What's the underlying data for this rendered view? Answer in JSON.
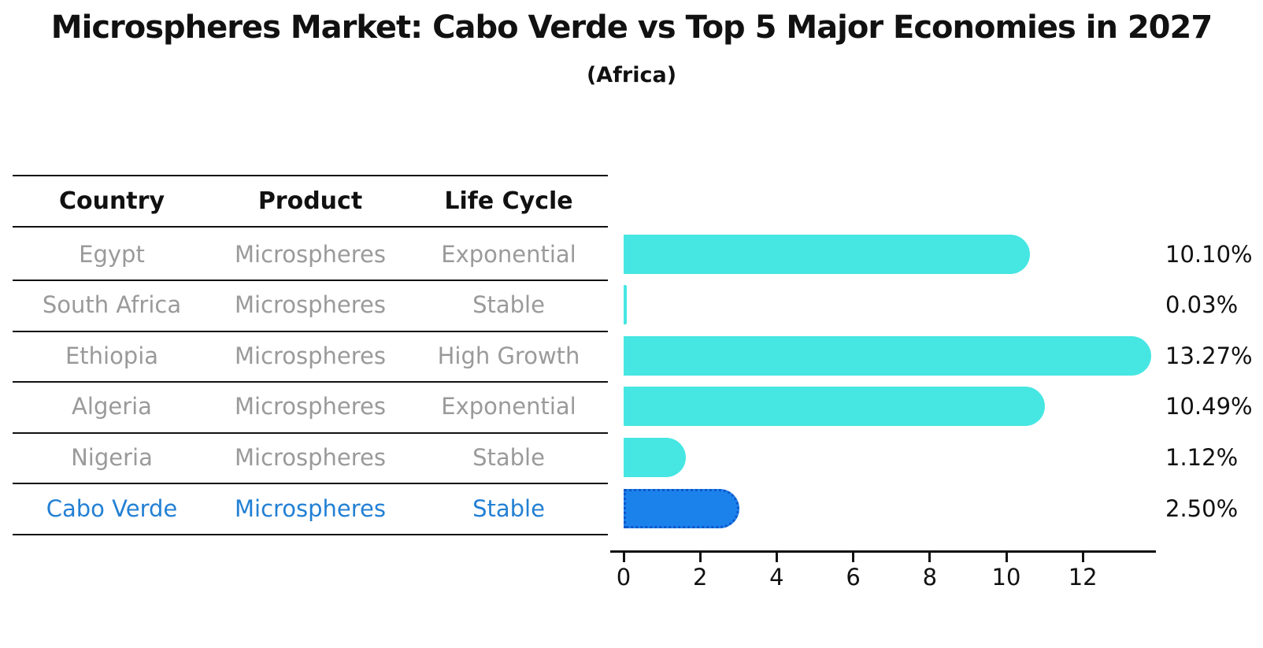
{
  "title": "Microspheres Market: Cabo Verde vs Top 5 Major Economies in 2027",
  "subtitle": "(Africa)",
  "table": {
    "headers": [
      "Country",
      "Product",
      "Life Cycle"
    ],
    "rows": [
      {
        "country": "Egypt",
        "product": "Microspheres",
        "life_cycle": "Exponential",
        "highlight": false
      },
      {
        "country": "South Africa",
        "product": "Microspheres",
        "life_cycle": "Stable",
        "highlight": false
      },
      {
        "country": "Ethiopia",
        "product": "Microspheres",
        "life_cycle": "High Growth",
        "highlight": false
      },
      {
        "country": "Algeria",
        "product": "Microspheres",
        "life_cycle": "Exponential",
        "highlight": false
      },
      {
        "country": "Nigeria",
        "product": "Microspheres",
        "life_cycle": "Stable",
        "highlight": false
      },
      {
        "country": "Cabo Verde",
        "product": "Microspheres",
        "life_cycle": "Stable",
        "highlight": true
      }
    ]
  },
  "chart_data": {
    "type": "bar",
    "orientation": "horizontal",
    "title": "Microspheres Market: Cabo Verde vs Top 5 Major Economies in 2027",
    "subtitle": "(Africa)",
    "categories": [
      "Egypt",
      "South Africa",
      "Ethiopia",
      "Algeria",
      "Nigeria",
      "Cabo Verde"
    ],
    "values": [
      10.1,
      0.03,
      13.27,
      10.49,
      1.12,
      2.5
    ],
    "value_labels": [
      "10.10%",
      "0.03%",
      "13.27%",
      "10.49%",
      "1.12%",
      "2.50%"
    ],
    "x_ticks": [
      0,
      2,
      4,
      6,
      8,
      10,
      12
    ],
    "xlim": [
      0,
      13.9
    ],
    "grid": false,
    "legend": "none",
    "highlight_index": 5
  },
  "colors": {
    "bar": "#46e6e2",
    "highlight_bar": "#1b82ec",
    "highlight_border": "#1057c8",
    "row_text": "#9a9a9a",
    "highlight_text": "#2380d4",
    "axis_and_labels": "#111111"
  }
}
